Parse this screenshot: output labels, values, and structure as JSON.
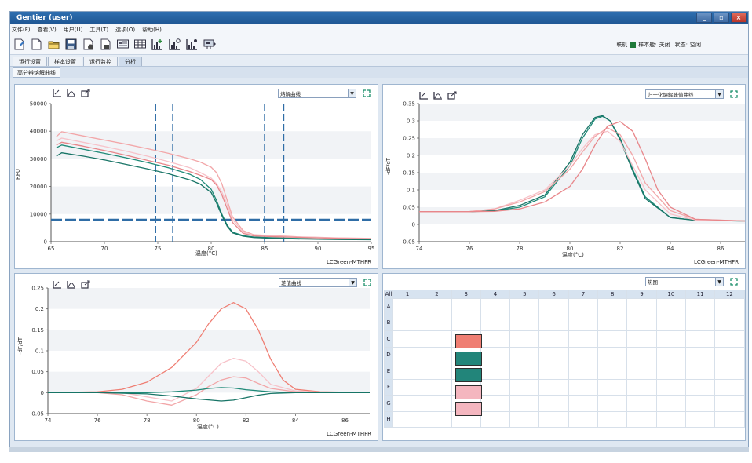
{
  "window": {
    "title": "Gentier (user)",
    "controls": [
      "_",
      "▫",
      "×"
    ]
  },
  "menu": [
    "文件(F)",
    "查看(V)",
    "用户(U)",
    "工具(T)",
    "选项(O)",
    "帮助(H)"
  ],
  "toolbar": {
    "icons": [
      "new-icon",
      "open-file-icon",
      "folder-icon",
      "save-icon",
      "export-icon",
      "print-icon",
      "monitor-icon",
      "table-icon",
      "chart-add-icon",
      "chart-settings-icon",
      "chart-analysis-icon",
      "instrument-icon"
    ],
    "status": {
      "connect_label": "联机",
      "connect_color": "#1f7a3a",
      "sample_label": "样本舱:",
      "sample_value": "关闭",
      "state_label": "状态:",
      "state_value": "空闲"
    }
  },
  "tabs": [
    "运行设置",
    "样本设置",
    "运行监控",
    "分析"
  ],
  "active_tab": 3,
  "subtab": "高分辨熔解曲线",
  "panels": {
    "melt": {
      "dropdown": "熔解曲线",
      "xlabel": "温度(°C)",
      "ylabel": "RFU",
      "footer": "LCGreen-MTHFR"
    },
    "normalized": {
      "dropdown": "归一化熔解峰值曲线",
      "xlabel": "温度(°C)",
      "ylabel": "-dF/dT",
      "footer": "LCGreen-MTHFR"
    },
    "difference": {
      "dropdown": "差值曲线",
      "xlabel": "温度(°C)",
      "ylabel": "-dF/dT",
      "footer": "LCGreen-MTHFR"
    },
    "plate": {
      "dropdown": "热图",
      "corner": "All",
      "columns": [
        "1",
        "2",
        "3",
        "4",
        "5",
        "6",
        "7",
        "8",
        "9",
        "10",
        "11",
        "12"
      ],
      "rows": [
        "A",
        "B",
        "C",
        "D",
        "E",
        "F",
        "G",
        "H"
      ],
      "wells": [
        {
          "row": "C",
          "col": "3",
          "color": "#ef7e73"
        },
        {
          "row": "D",
          "col": "3",
          "color": "#22857a"
        },
        {
          "row": "E",
          "col": "3",
          "color": "#22857a"
        },
        {
          "row": "F",
          "col": "3",
          "color": "#f4b6bf"
        },
        {
          "row": "G",
          "col": "3",
          "color": "#f4b6bf"
        }
      ]
    }
  },
  "chart_data": [
    {
      "type": "line",
      "title": "",
      "xlabel": "温度(°C)",
      "ylabel": "RFU",
      "xlim": [
        65,
        95
      ],
      "ylim": [
        0,
        50000
      ],
      "xticks": [
        65,
        70,
        75,
        80,
        85,
        90,
        95
      ],
      "yticks": [
        0,
        10000,
        20000,
        30000,
        40000,
        50000
      ],
      "threshold_y": 8000,
      "vertical_markers": [
        74.8,
        76.4,
        85.0,
        86.8
      ],
      "series": [
        {
          "color": "#f2a6a8",
          "x": [
            65.5,
            66,
            68,
            70,
            72,
            74,
            76,
            78,
            79,
            80,
            80.5,
            81,
            81.5,
            82,
            83,
            84,
            86,
            88,
            90,
            92,
            95
          ],
          "y": [
            38000,
            39800,
            38300,
            36800,
            35300,
            33700,
            32000,
            30000,
            28800,
            27000,
            25000,
            21000,
            15000,
            9000,
            4000,
            2500,
            2200,
            1800,
            1600,
            1400,
            1200
          ]
        },
        {
          "color": "#f7c2c9",
          "x": [
            65.5,
            66,
            68,
            70,
            72,
            74,
            76,
            78,
            79,
            80,
            80.5,
            81,
            81.5,
            82,
            83,
            84,
            86,
            88,
            90,
            92,
            95
          ],
          "y": [
            36500,
            37500,
            36000,
            34500,
            32800,
            31000,
            29000,
            26800,
            25000,
            23000,
            21000,
            18000,
            13500,
            8000,
            3500,
            2300,
            2000,
            1700,
            1500,
            1300,
            1100
          ]
        },
        {
          "color": "#e8868a",
          "x": [
            65.5,
            66,
            68,
            70,
            72,
            74,
            76,
            78,
            79,
            80,
            80.5,
            81,
            81.5,
            82,
            83,
            84,
            86,
            88,
            90,
            92,
            95
          ],
          "y": [
            35000,
            36000,
            34600,
            33000,
            31300,
            29500,
            27700,
            25400,
            24000,
            22500,
            20500,
            17000,
            12000,
            7000,
            3000,
            2100,
            1800,
            1600,
            1400,
            1200,
            1000
          ]
        },
        {
          "color": "#1f8a78",
          "x": [
            65.5,
            66,
            68,
            70,
            72,
            74,
            76,
            78,
            79,
            80,
            80.5,
            81,
            81.5,
            82,
            83,
            84,
            86,
            88,
            90,
            92,
            95
          ],
          "y": [
            34000,
            35000,
            33500,
            32000,
            30400,
            28700,
            26800,
            24400,
            22500,
            19000,
            15000,
            10000,
            6000,
            3500,
            2200,
            1700,
            1400,
            1200,
            1000,
            900,
            800
          ]
        },
        {
          "color": "#177466",
          "x": [
            65.5,
            66,
            68,
            70,
            72,
            74,
            76,
            78,
            79,
            80,
            80.5,
            81,
            81.5,
            82,
            83,
            84,
            86,
            88,
            90,
            92,
            95
          ],
          "y": [
            31000,
            32200,
            31000,
            29600,
            28000,
            26400,
            24600,
            22400,
            20800,
            17800,
            14000,
            9500,
            5600,
            3200,
            2000,
            1500,
            1200,
            1000,
            900,
            800,
            700
          ]
        }
      ]
    },
    {
      "type": "line",
      "title": "",
      "xlabel": "温度(°C)",
      "ylabel": "-dF/dT",
      "xlim": [
        74,
        87
      ],
      "ylim": [
        -0.05,
        0.35
      ],
      "xticks": [
        74,
        76,
        78,
        80,
        82,
        84,
        86
      ],
      "yticks": [
        -0.05,
        0,
        0.05,
        0.1,
        0.15,
        0.2,
        0.25,
        0.3,
        0.35
      ],
      "series": [
        {
          "color": "#1f8a78",
          "x": [
            74,
            76,
            77,
            78,
            79,
            80,
            80.5,
            81,
            81.3,
            81.6,
            82,
            82.5,
            83,
            84,
            85,
            87
          ],
          "y": [
            0.037,
            0.037,
            0.039,
            0.05,
            0.08,
            0.17,
            0.25,
            0.305,
            0.313,
            0.3,
            0.25,
            0.16,
            0.08,
            0.02,
            0.012,
            0.01
          ]
        },
        {
          "color": "#177466",
          "x": [
            74,
            76,
            77,
            78,
            79,
            80,
            80.5,
            81,
            81.3,
            81.6,
            82,
            82.5,
            83,
            84,
            85,
            87
          ],
          "y": [
            0.037,
            0.037,
            0.04,
            0.055,
            0.085,
            0.18,
            0.26,
            0.31,
            0.315,
            0.3,
            0.245,
            0.155,
            0.075,
            0.02,
            0.012,
            0.01
          ]
        },
        {
          "color": "#f7c2c9",
          "x": [
            74,
            76,
            77,
            78,
            79,
            80,
            80.5,
            81,
            81.5,
            82,
            82.5,
            83,
            84,
            85,
            87
          ],
          "y": [
            0.037,
            0.037,
            0.045,
            0.07,
            0.1,
            0.17,
            0.22,
            0.26,
            0.27,
            0.24,
            0.17,
            0.1,
            0.03,
            0.013,
            0.01
          ]
        },
        {
          "color": "#f2a6a8",
          "x": [
            74,
            76,
            77,
            78,
            79,
            80,
            80.5,
            81,
            81.5,
            82,
            82.5,
            83,
            84,
            85,
            87
          ],
          "y": [
            0.037,
            0.037,
            0.045,
            0.065,
            0.095,
            0.16,
            0.21,
            0.255,
            0.28,
            0.26,
            0.2,
            0.12,
            0.04,
            0.015,
            0.01
          ]
        },
        {
          "color": "#e8868a",
          "x": [
            74,
            76,
            77,
            78,
            79,
            80,
            80.5,
            81,
            81.5,
            82,
            82.5,
            83,
            83.5,
            84,
            85,
            87
          ],
          "y": [
            0.037,
            0.037,
            0.038,
            0.045,
            0.065,
            0.11,
            0.16,
            0.23,
            0.285,
            0.298,
            0.27,
            0.19,
            0.1,
            0.05,
            0.015,
            0.01
          ]
        }
      ]
    },
    {
      "type": "line",
      "title": "",
      "xlabel": "温度(°C)",
      "ylabel": "-dF/dT",
      "xlim": [
        74,
        87
      ],
      "ylim": [
        -0.05,
        0.25
      ],
      "xticks": [
        74,
        76,
        78,
        80,
        82,
        84,
        86
      ],
      "yticks": [
        -0.05,
        0,
        0.05,
        0.1,
        0.15,
        0.2,
        0.25
      ],
      "series": [
        {
          "color": "#ef7e73",
          "x": [
            74,
            76,
            77,
            78,
            79,
            80,
            80.5,
            81,
            81.5,
            82,
            82.5,
            83,
            83.5,
            84,
            85,
            87
          ],
          "y": [
            0,
            0.002,
            0.008,
            0.025,
            0.06,
            0.12,
            0.165,
            0.2,
            0.215,
            0.2,
            0.15,
            0.08,
            0.03,
            0.008,
            0.002,
            0
          ]
        },
        {
          "color": "#f7c2c9",
          "x": [
            74,
            76,
            77,
            78,
            79,
            80,
            80.5,
            81,
            81.5,
            82,
            82.5,
            83,
            84,
            85,
            87
          ],
          "y": [
            0,
            0,
            0,
            -0.01,
            -0.02,
            0.01,
            0.04,
            0.07,
            0.082,
            0.075,
            0.05,
            0.02,
            0.004,
            0.001,
            0
          ]
        },
        {
          "color": "#f2a6a8",
          "x": [
            74,
            76,
            77,
            78,
            79,
            80,
            80.5,
            81,
            81.5,
            82,
            82.5,
            83,
            84,
            85,
            87
          ],
          "y": [
            0,
            0,
            -0.005,
            -0.02,
            -0.03,
            -0.005,
            0.015,
            0.03,
            0.038,
            0.035,
            0.022,
            0.01,
            0.002,
            0,
            0
          ]
        },
        {
          "color": "#1f8a78",
          "x": [
            74,
            76,
            78,
            79,
            80,
            80.5,
            81,
            81.5,
            82,
            83,
            84,
            87
          ],
          "y": [
            0,
            0,
            0,
            0.002,
            0.006,
            0.01,
            0.012,
            0.011,
            0.007,
            0.002,
            0,
            0
          ]
        },
        {
          "color": "#177466",
          "x": [
            74,
            76,
            78,
            79,
            80,
            81,
            81.5,
            82,
            82.5,
            83,
            84,
            87
          ],
          "y": [
            0,
            0,
            -0.003,
            -0.008,
            -0.015,
            -0.02,
            -0.018,
            -0.012,
            -0.006,
            -0.002,
            0,
            0
          ]
        }
      ]
    }
  ]
}
